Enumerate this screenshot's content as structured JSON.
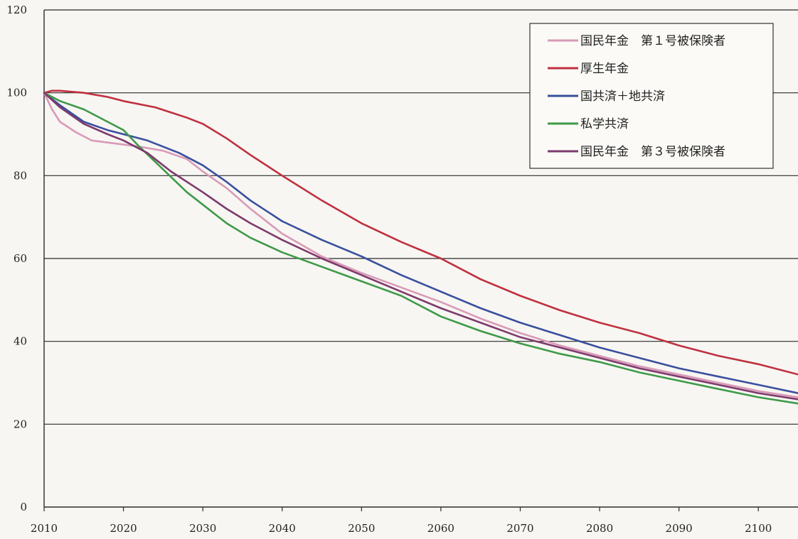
{
  "chart_data": {
    "type": "line",
    "title": "",
    "xlabel": "",
    "ylabel": "",
    "xlim": [
      2010,
      2105
    ],
    "ylim": [
      0,
      120
    ],
    "x_ticks": [
      2010,
      2020,
      2030,
      2040,
      2050,
      2060,
      2070,
      2080,
      2090,
      2100
    ],
    "y_ticks": [
      0,
      20,
      40,
      60,
      80,
      100,
      120
    ],
    "grid": "horizontal",
    "legend_position": "top-right",
    "series": [
      {
        "name": "国民年金　第１号被保険者",
        "color": "#d99ab8",
        "points": [
          [
            2010,
            100
          ],
          [
            2011,
            96
          ],
          [
            2012,
            93
          ],
          [
            2014,
            90.5
          ],
          [
            2016,
            88.5
          ],
          [
            2018,
            88
          ],
          [
            2020,
            87.5
          ],
          [
            2022,
            87
          ],
          [
            2025,
            86
          ],
          [
            2028,
            84
          ],
          [
            2030,
            81
          ],
          [
            2033,
            77
          ],
          [
            2036,
            72
          ],
          [
            2040,
            66
          ],
          [
            2045,
            60.5
          ],
          [
            2050,
            56.5
          ],
          [
            2055,
            53
          ],
          [
            2060,
            49.5
          ],
          [
            2065,
            45.5
          ],
          [
            2070,
            42
          ],
          [
            2075,
            39
          ],
          [
            2080,
            36.5
          ],
          [
            2085,
            34
          ],
          [
            2090,
            32
          ],
          [
            2095,
            30
          ],
          [
            2100,
            28
          ],
          [
            2105,
            26.5
          ]
        ]
      },
      {
        "name": "厚生年金",
        "color": "#c0303f",
        "points": [
          [
            2010,
            100
          ],
          [
            2011,
            100.5
          ],
          [
            2012,
            100.5
          ],
          [
            2015,
            100
          ],
          [
            2018,
            99
          ],
          [
            2020,
            98
          ],
          [
            2024,
            96.5
          ],
          [
            2028,
            94
          ],
          [
            2030,
            92.5
          ],
          [
            2033,
            89
          ],
          [
            2036,
            85
          ],
          [
            2040,
            80
          ],
          [
            2045,
            74
          ],
          [
            2050,
            68.5
          ],
          [
            2055,
            64
          ],
          [
            2060,
            60
          ],
          [
            2065,
            55
          ],
          [
            2070,
            51
          ],
          [
            2075,
            47.5
          ],
          [
            2080,
            44.5
          ],
          [
            2085,
            42
          ],
          [
            2090,
            39
          ],
          [
            2095,
            36.5
          ],
          [
            2100,
            34.5
          ],
          [
            2105,
            32
          ]
        ]
      },
      {
        "name": "国共済＋地共済",
        "color": "#3a4f9e",
        "points": [
          [
            2010,
            100
          ],
          [
            2012,
            97
          ],
          [
            2015,
            93
          ],
          [
            2018,
            91
          ],
          [
            2020,
            90
          ],
          [
            2023,
            88.5
          ],
          [
            2027,
            85.5
          ],
          [
            2030,
            82.5
          ],
          [
            2033,
            78.5
          ],
          [
            2036,
            74
          ],
          [
            2040,
            69
          ],
          [
            2045,
            64.5
          ],
          [
            2050,
            60.5
          ],
          [
            2055,
            56
          ],
          [
            2060,
            52
          ],
          [
            2065,
            48
          ],
          [
            2070,
            44.5
          ],
          [
            2075,
            41.5
          ],
          [
            2080,
            38.5
          ],
          [
            2085,
            36
          ],
          [
            2090,
            33.5
          ],
          [
            2095,
            31.5
          ],
          [
            2100,
            29.5
          ],
          [
            2105,
            27.5
          ]
        ]
      },
      {
        "name": "私学共済",
        "color": "#3e9a48",
        "points": [
          [
            2010,
            100
          ],
          [
            2012,
            98
          ],
          [
            2015,
            96
          ],
          [
            2018,
            93
          ],
          [
            2020,
            91
          ],
          [
            2022,
            87
          ],
          [
            2025,
            81.5
          ],
          [
            2028,
            76
          ],
          [
            2030,
            73
          ],
          [
            2033,
            68.5
          ],
          [
            2036,
            65
          ],
          [
            2040,
            61.5
          ],
          [
            2045,
            58
          ],
          [
            2050,
            54.5
          ],
          [
            2055,
            51
          ],
          [
            2060,
            46
          ],
          [
            2065,
            42.5
          ],
          [
            2070,
            39.5
          ],
          [
            2075,
            37
          ],
          [
            2080,
            35
          ],
          [
            2085,
            32.5
          ],
          [
            2090,
            30.5
          ],
          [
            2095,
            28.5
          ],
          [
            2100,
            26.5
          ],
          [
            2105,
            25
          ]
        ]
      },
      {
        "name": "国民年金　第３号被保険者",
        "color": "#7e3a6c",
        "points": [
          [
            2010,
            100
          ],
          [
            2012,
            96.5
          ],
          [
            2015,
            92.5
          ],
          [
            2018,
            90
          ],
          [
            2020,
            88.5
          ],
          [
            2023,
            85.5
          ],
          [
            2026,
            81
          ],
          [
            2030,
            76
          ],
          [
            2033,
            72
          ],
          [
            2036,
            68.5
          ],
          [
            2040,
            64.5
          ],
          [
            2045,
            60
          ],
          [
            2050,
            56
          ],
          [
            2055,
            52
          ],
          [
            2060,
            48
          ],
          [
            2065,
            44.5
          ],
          [
            2070,
            41
          ],
          [
            2075,
            38.5
          ],
          [
            2080,
            36
          ],
          [
            2085,
            33.5
          ],
          [
            2090,
            31.5
          ],
          [
            2095,
            29.5
          ],
          [
            2100,
            27.5
          ],
          [
            2105,
            26
          ]
        ]
      }
    ]
  }
}
